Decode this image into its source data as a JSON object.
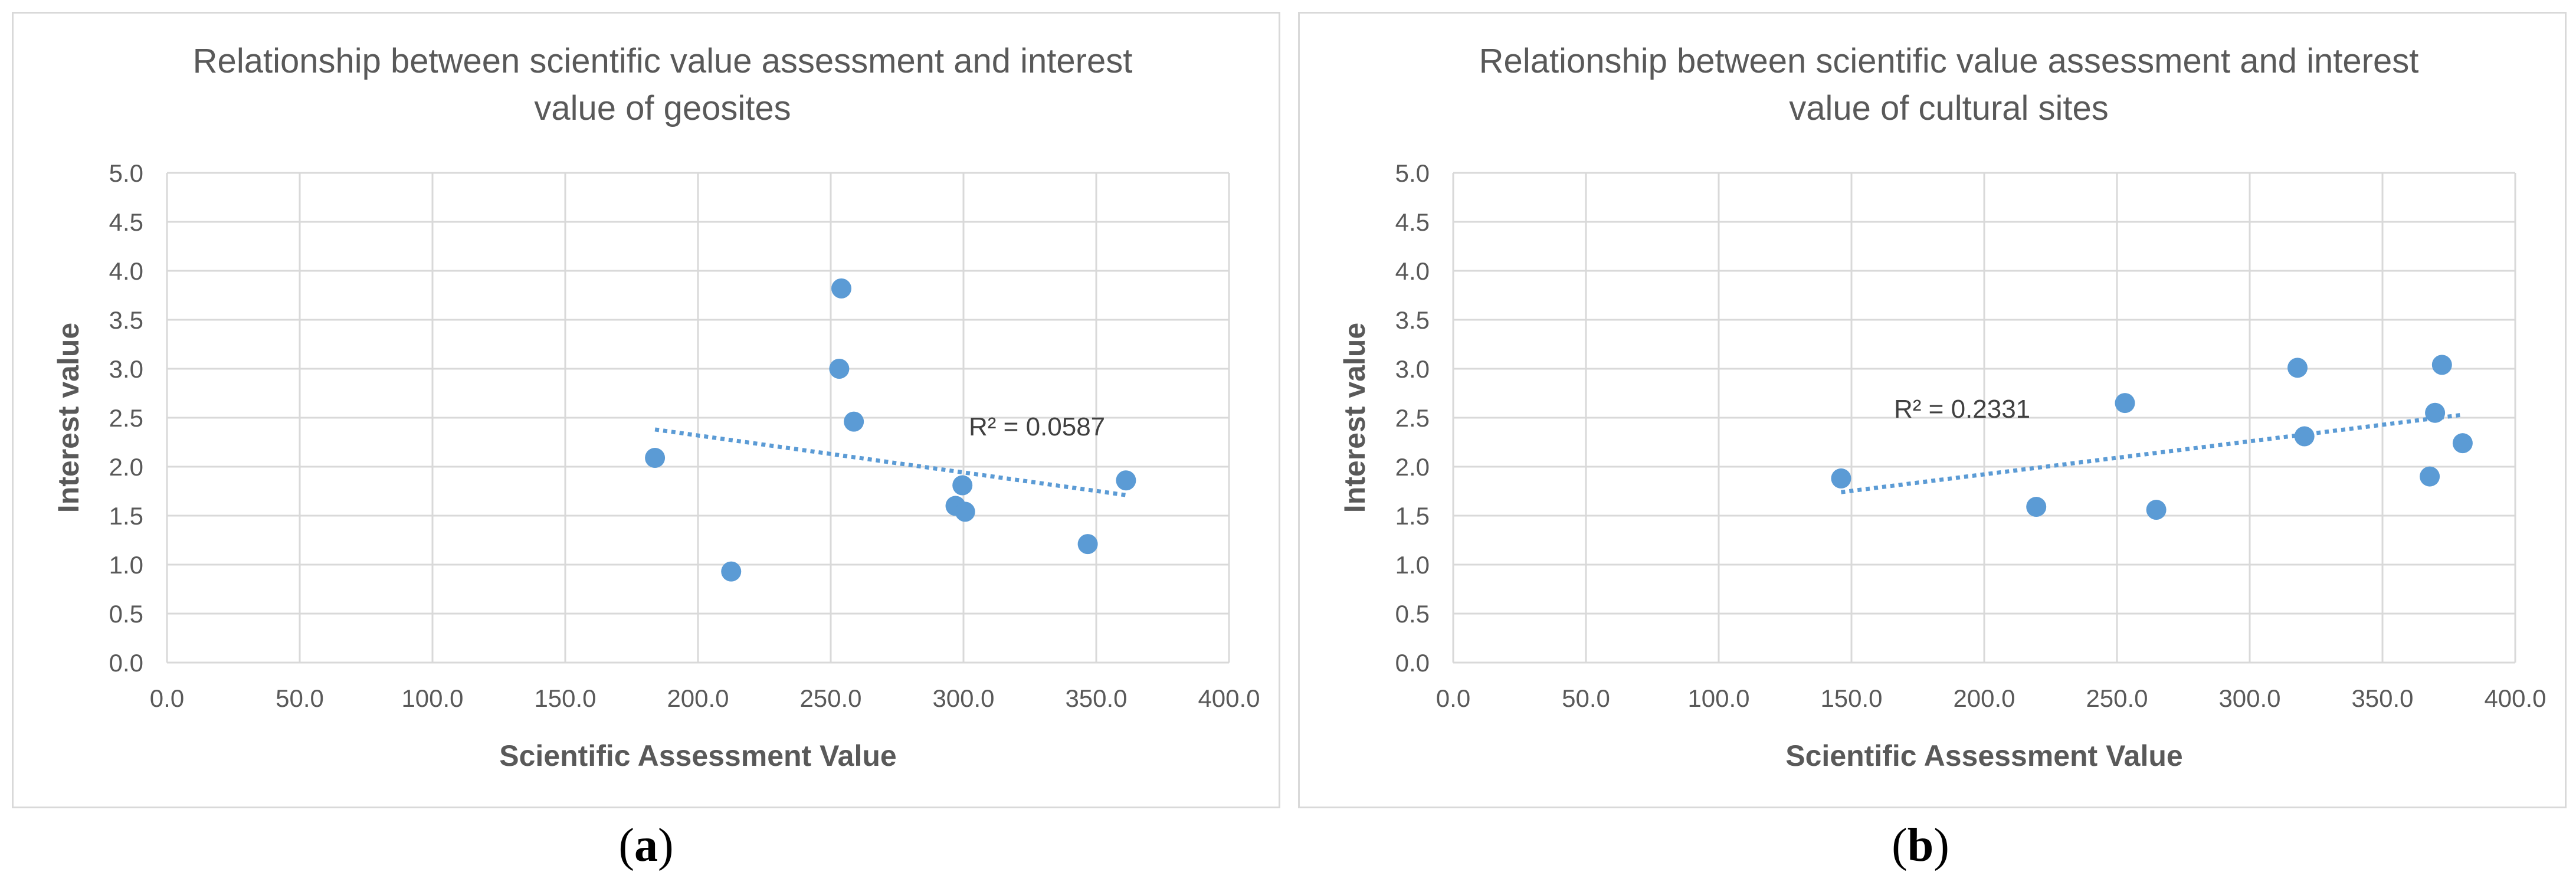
{
  "chart_data": [
    {
      "type": "scatter",
      "panel_label": "a",
      "title_lines": [
        "Relationship between scientific value assessment and interest",
        "value of geosites"
      ],
      "xlabel": "Scientific Assessment Value",
      "ylabel": "Interest value",
      "xlim": [
        0,
        400
      ],
      "ylim": [
        0,
        5
      ],
      "x_ticks": [
        "0.0",
        "50.0",
        "100.0",
        "150.0",
        "200.0",
        "250.0",
        "300.0",
        "350.0",
        "400.0"
      ],
      "y_ticks": [
        "0.0",
        "0.5",
        "1.0",
        "1.5",
        "2.0",
        "2.5",
        "3.0",
        "3.5",
        "4.0",
        "4.5",
        "5.0"
      ],
      "grid": true,
      "point_color": "#5b9bd5",
      "points": [
        {
          "x": 183.8,
          "y": 2.09
        },
        {
          "x": 212.5,
          "y": 0.93
        },
        {
          "x": 253.2,
          "y": 3.0
        },
        {
          "x": 254.0,
          "y": 3.82
        },
        {
          "x": 258.7,
          "y": 2.46
        },
        {
          "x": 297.0,
          "y": 1.6
        },
        {
          "x": 299.6,
          "y": 1.81
        },
        {
          "x": 300.6,
          "y": 1.54
        },
        {
          "x": 346.8,
          "y": 1.21
        },
        {
          "x": 361.2,
          "y": 1.86
        }
      ],
      "trendline": {
        "x": [
          183.8,
          361.2
        ],
        "y": [
          2.38,
          1.71
        ]
      },
      "r2_label": "R² = 0.0587",
      "r2_pos": {
        "x": 302,
        "y": 2.32
      }
    },
    {
      "type": "scatter",
      "panel_label": "b",
      "title_lines": [
        "Relationship between scientific value assessment and interest",
        "value of cultural sites"
      ],
      "xlabel": "Scientific Assessment Value",
      "ylabel": "Interest value",
      "xlim": [
        0,
        400
      ],
      "ylim": [
        0,
        5
      ],
      "x_ticks": [
        "0.0",
        "50.0",
        "100.0",
        "150.0",
        "200.0",
        "250.0",
        "300.0",
        "350.0",
        "400.0"
      ],
      "y_ticks": [
        "0.0",
        "0.5",
        "1.0",
        "1.5",
        "2.0",
        "2.5",
        "3.0",
        "3.5",
        "4.0",
        "4.5",
        "5.0"
      ],
      "grid": true,
      "point_color": "#5b9bd5",
      "points": [
        {
          "x": 146.1,
          "y": 1.88
        },
        {
          "x": 219.6,
          "y": 1.59
        },
        {
          "x": 253.0,
          "y": 2.65
        },
        {
          "x": 264.8,
          "y": 1.56
        },
        {
          "x": 318.0,
          "y": 3.01
        },
        {
          "x": 320.6,
          "y": 2.31
        },
        {
          "x": 367.8,
          "y": 1.9
        },
        {
          "x": 369.8,
          "y": 2.55
        },
        {
          "x": 372.4,
          "y": 3.04
        },
        {
          "x": 380.2,
          "y": 2.24
        }
      ],
      "trendline": {
        "x": [
          146.1,
          380.2
        ],
        "y": [
          1.74,
          2.53
        ]
      },
      "r2_label": "R² = 0.2331",
      "r2_pos": {
        "x": 166,
        "y": 2.5
      }
    }
  ]
}
